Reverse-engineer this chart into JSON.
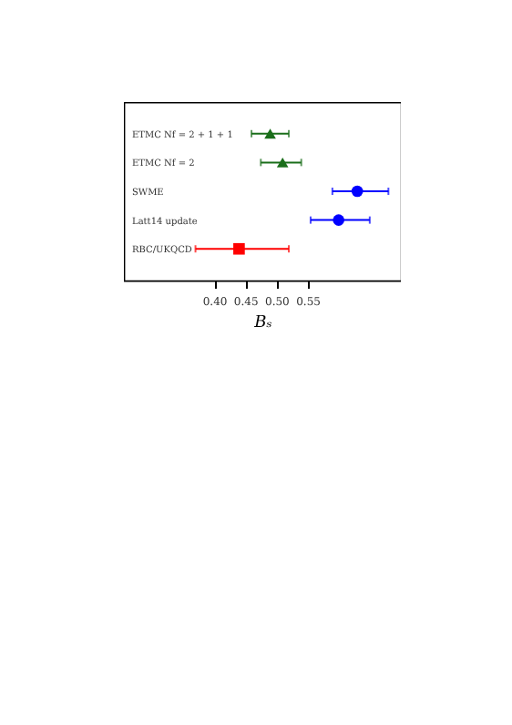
{
  "chart_data": {
    "type": "scatter",
    "xlabel": "Bₛ",
    "categories": [
      "ETMC Nf = 2 + 1 + 1",
      "ETMC Nf = 2",
      "SWME",
      "Latt14 update",
      "RBC/UKQCD"
    ],
    "orientation": "horizontal",
    "xlim": [
      0.255,
      0.7
    ],
    "xticks": [
      {
        "value": 0.4,
        "label": "0.40"
      },
      {
        "value": 0.45,
        "label": "0.45"
      },
      {
        "value": 0.5,
        "label": "0.50"
      },
      {
        "value": 0.55,
        "label": "0.55"
      }
    ],
    "series": [
      {
        "color": "#1a6e1a",
        "marker": "triangle",
        "values": [
          0.49,
          null,
          null,
          null,
          null
        ],
        "errors": [
          [
            0.46,
            0.52
          ],
          null,
          null,
          null,
          null
        ]
      },
      {
        "color": "#1a6e1a",
        "marker": "triangle",
        "values": [
          null,
          0.51,
          null,
          null,
          null
        ],
        "errors": [
          null,
          [
            0.475,
            0.54
          ],
          null,
          null,
          null
        ]
      },
      {
        "color": "#0000ff",
        "marker": "circle",
        "values": [
          null,
          null,
          0.63,
          null,
          null
        ],
        "errors": [
          null,
          null,
          [
            0.59,
            0.68
          ],
          null,
          null
        ]
      },
      {
        "color": "#0000ff",
        "marker": "circle",
        "values": [
          null,
          null,
          null,
          0.6,
          null
        ],
        "errors": [
          null,
          null,
          null,
          [
            0.555,
            0.65
          ],
          null
        ]
      },
      {
        "color": "#ff0000",
        "marker": "square",
        "values": [
          null,
          null,
          null,
          null,
          0.44
        ],
        "errors": [
          null,
          null,
          null,
          null,
          [
            0.37,
            0.52
          ]
        ]
      }
    ]
  }
}
